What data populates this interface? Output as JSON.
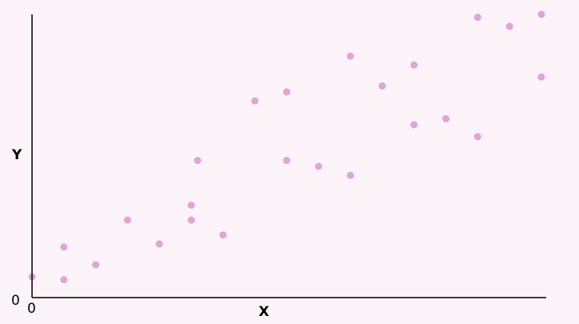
{
  "chart_data": {
    "type": "scatter",
    "title": "",
    "xlabel": "X",
    "ylabel": "Y",
    "x_tick_labels": [
      "0"
    ],
    "y_tick_labels": [
      "0"
    ],
    "xlim": [
      0,
      16.5
    ],
    "ylim": [
      0,
      9.5
    ],
    "grid": false,
    "legend": "none",
    "point_color": "#e3a2d8",
    "background_color": "#fcf4f9",
    "axis_color": "#000000",
    "series": [
      {
        "points": [
          [
            0.0,
            0.7
          ],
          [
            1.0,
            0.6
          ],
          [
            1.0,
            1.7
          ],
          [
            2.0,
            1.1
          ],
          [
            3.0,
            2.6
          ],
          [
            4.0,
            1.8
          ],
          [
            5.0,
            3.1
          ],
          [
            5.0,
            2.6
          ],
          [
            5.2,
            4.6
          ],
          [
            6.0,
            2.1
          ],
          [
            7.0,
            6.6
          ],
          [
            8.0,
            6.9
          ],
          [
            8.0,
            4.6
          ],
          [
            9.0,
            4.4
          ],
          [
            10.0,
            4.1
          ],
          [
            10.0,
            8.1
          ],
          [
            11.0,
            7.1
          ],
          [
            12.0,
            7.8
          ],
          [
            12.0,
            5.8
          ],
          [
            13.0,
            6.0
          ],
          [
            14.0,
            5.4
          ],
          [
            14.0,
            9.4
          ],
          [
            15.0,
            9.1
          ],
          [
            16.0,
            7.4
          ],
          [
            16.0,
            9.5
          ]
        ]
      }
    ]
  }
}
